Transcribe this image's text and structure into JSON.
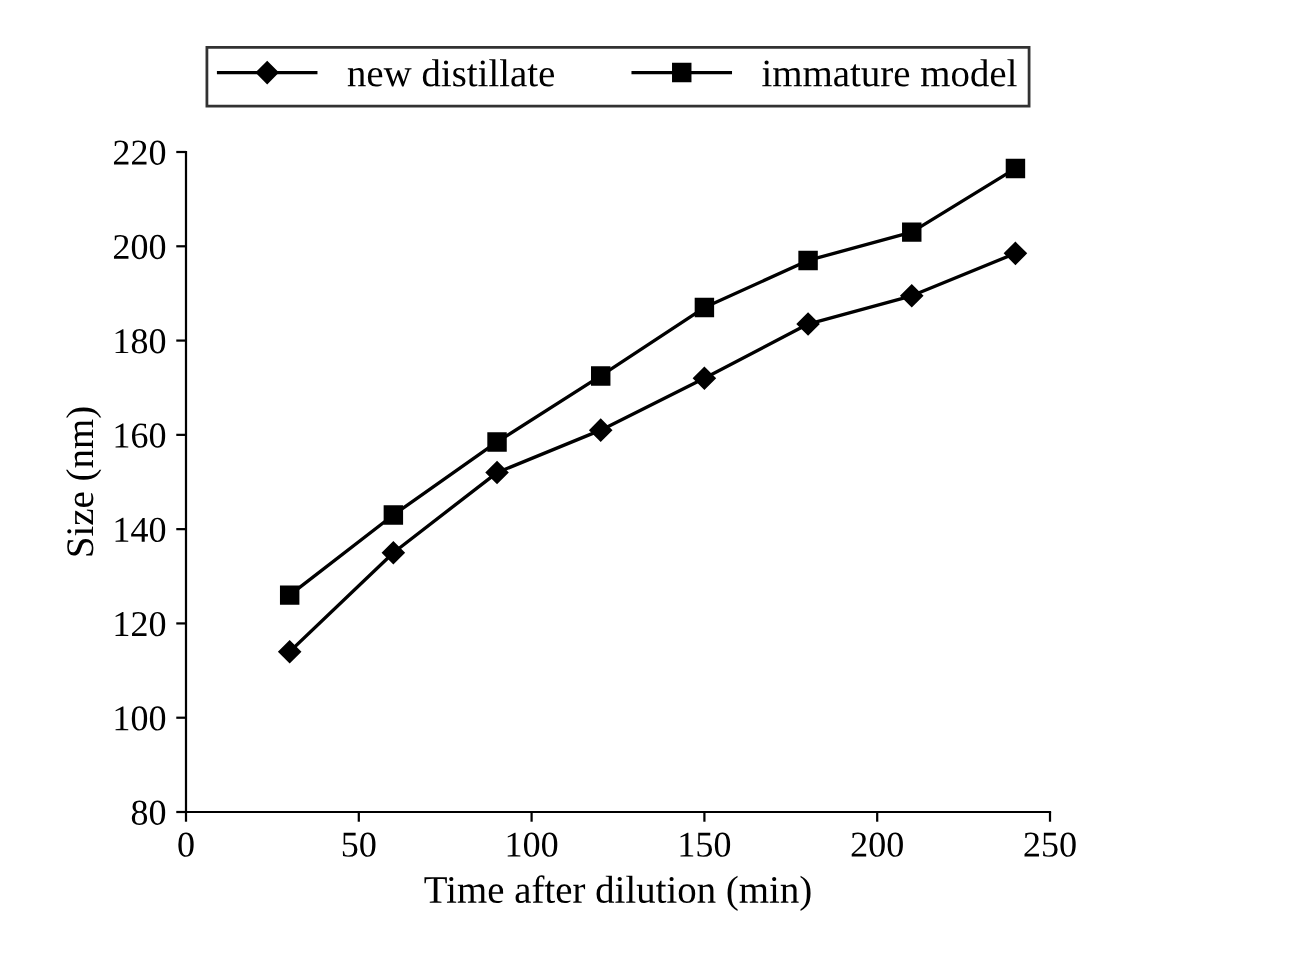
{
  "chart_data": {
    "type": "line",
    "xlabel": "Time after dilution (min)",
    "ylabel": "Size (nm)",
    "x": [
      30,
      60,
      90,
      120,
      150,
      180,
      210,
      240
    ],
    "series": [
      {
        "name": "new distillate",
        "color": "#000000",
        "marker": "diamond",
        "values": [
          114,
          135,
          152,
          161,
          172,
          183.5,
          189.5,
          198.5
        ]
      },
      {
        "name": "immature model",
        "color": "#000000",
        "marker": "square",
        "values": [
          126,
          143,
          158.5,
          172.5,
          187,
          197,
          203,
          216.5
        ]
      }
    ],
    "xlim": [
      0,
      250
    ],
    "xticks": [
      0,
      50,
      100,
      150,
      200,
      250
    ],
    "ylim": [
      80,
      220
    ],
    "yticks": [
      80,
      100,
      120,
      140,
      160,
      180,
      200,
      220
    ],
    "grid": false,
    "legend": "top",
    "line_style": "solid"
  }
}
